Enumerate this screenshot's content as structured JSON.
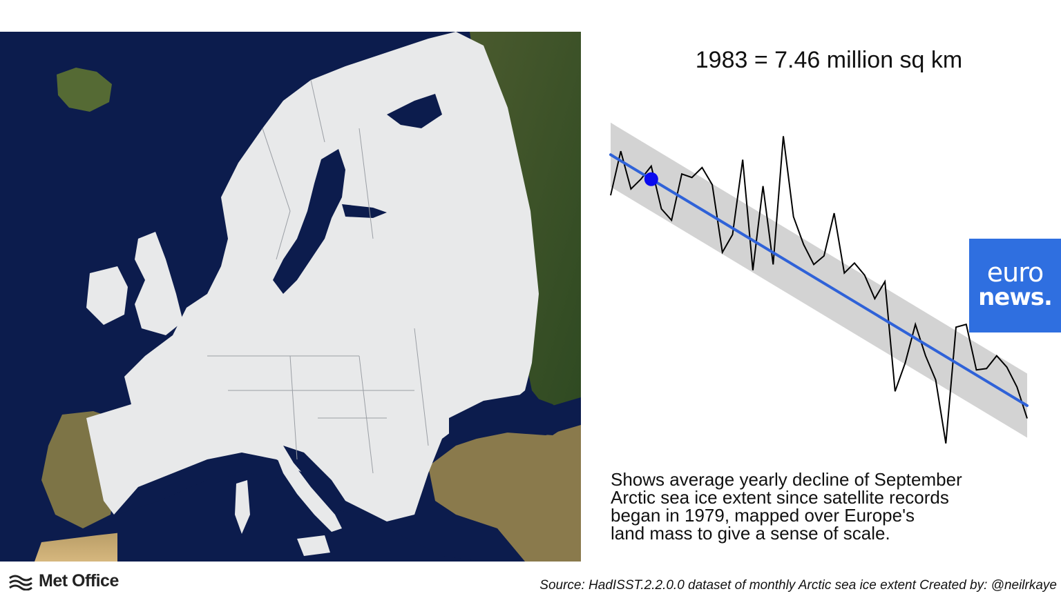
{
  "headline": "1983 = 7.46 million sq km",
  "caption_lines": [
    "Shows average yearly decline of September",
    "Arctic sea ice extent since satellite records",
    "began in 1979, mapped over Europe's",
    "land mass to give a sense of scale."
  ],
  "brand": {
    "euronews_line1": "euro",
    "euronews_line2": "news.",
    "met_office": "Met Office",
    "euronews_color": "#2f6fe0"
  },
  "source": "Source: HadISST.2.2.0.0 dataset of monthly Arctic sea ice extent  Created by: @neilrkaye",
  "colors": {
    "ocean": "#0c1c4d",
    "ice_overlay": "#e8e9ea",
    "trend_line": "#2f62d8",
    "band": "#d3d3d3",
    "highlight_point": "#0a0aee"
  },
  "chart_data": {
    "type": "line",
    "x": [
      1979,
      1980,
      1981,
      1982,
      1983,
      1984,
      1985,
      1986,
      1987,
      1988,
      1989,
      1990,
      1991,
      1992,
      1993,
      1994,
      1995,
      1996,
      1997,
      1998,
      1999,
      2000,
      2001,
      2002,
      2003,
      2004,
      2005,
      2006,
      2007,
      2008,
      2009,
      2010,
      2011,
      2012,
      2013,
      2014,
      2015,
      2016,
      2017,
      2018,
      2019,
      2020
    ],
    "series": [
      {
        "values": [
          7.05,
          7.67,
          7.14,
          7.28,
          7.46,
          6.86,
          6.7,
          7.35,
          7.3,
          7.44,
          7.2,
          6.25,
          6.5,
          7.55,
          6.0,
          7.18,
          6.08,
          7.88,
          6.75,
          6.36,
          6.08,
          6.2,
          6.8,
          5.96,
          6.1,
          5.93,
          5.6,
          5.84,
          4.3,
          4.7,
          5.24,
          4.8,
          4.46,
          3.57,
          5.2,
          5.24,
          4.6,
          4.62,
          4.8,
          4.64,
          4.36,
          3.92
        ]
      }
    ],
    "trend": {
      "start": 7.62,
      "end": 4.1
    },
    "highlight": {
      "year": 1983,
      "value": 7.46
    },
    "xlim": [
      1979,
      2020
    ],
    "ylim": [
      3.5,
      8.0
    ],
    "grid": false,
    "axes_shown": false
  }
}
